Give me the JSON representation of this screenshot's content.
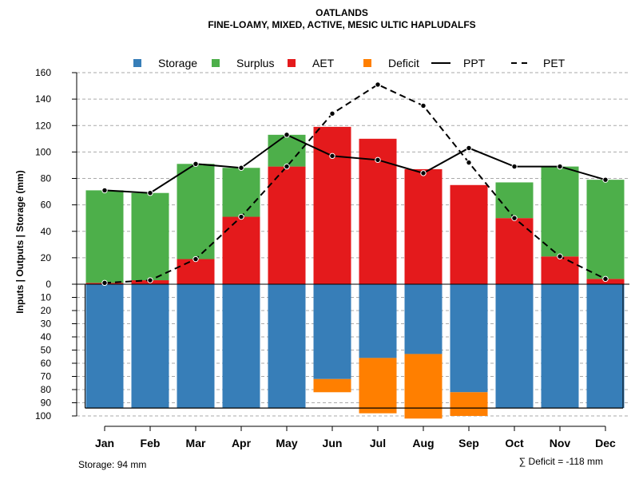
{
  "chart_data": {
    "type": "bar",
    "title": "OATLANDS",
    "subtitle": "FINE-LOAMY, MIXED, ACTIVE, MESIC ULTIC HAPLUDALFS",
    "ylabel": "Inputs | Outputs | Storage    (mm)",
    "categories": [
      "Jan",
      "Feb",
      "Mar",
      "Apr",
      "May",
      "Jun",
      "Jul",
      "Aug",
      "Sep",
      "Oct",
      "Nov",
      "Dec"
    ],
    "upper_ylim": [
      0,
      160
    ],
    "upper_ticks": [
      0,
      20,
      40,
      60,
      80,
      100,
      120,
      140,
      160
    ],
    "lower_ylim": [
      0,
      100
    ],
    "lower_ticks": [
      0,
      10,
      20,
      30,
      40,
      50,
      60,
      70,
      80,
      90,
      100
    ],
    "legend": [
      {
        "key": "storage",
        "label": "Storage",
        "type": "box",
        "color": "#377EB8"
      },
      {
        "key": "surplus",
        "label": "Surplus",
        "type": "box",
        "color": "#4DAF4A"
      },
      {
        "key": "aet",
        "label": "AET",
        "type": "box",
        "color": "#E41A1C"
      },
      {
        "key": "deficit",
        "label": "Deficit",
        "type": "box",
        "color": "#FF7F00"
      },
      {
        "key": "ppt",
        "label": "PPT",
        "type": "line-solid",
        "color": "#000000"
      },
      {
        "key": "pet",
        "label": "PET",
        "type": "line-dashed",
        "color": "#000000"
      }
    ],
    "series": [
      {
        "name": "AET",
        "values": [
          1,
          3,
          19,
          51,
          89,
          119,
          110,
          87,
          75,
          50,
          21,
          4
        ]
      },
      {
        "name": "Surplus",
        "values": [
          70,
          66,
          72,
          37,
          24,
          0,
          0,
          0,
          0,
          27,
          68,
          75
        ]
      },
      {
        "name": "PPT",
        "values": [
          71,
          69,
          91,
          88,
          113,
          97,
          94,
          84,
          103,
          89,
          89,
          79
        ]
      },
      {
        "name": "PET",
        "values": [
          1,
          3,
          19,
          51,
          89,
          129,
          151,
          135,
          92,
          50,
          21,
          4
        ]
      },
      {
        "name": "Storage",
        "values": [
          94,
          94,
          94,
          94,
          94,
          72,
          56,
          53,
          82,
          94,
          94,
          94
        ]
      },
      {
        "name": "Deficit",
        "values": [
          0,
          0,
          0,
          0,
          0,
          10,
          42,
          49,
          18,
          0,
          0,
          0
        ]
      }
    ],
    "storage_capacity": 94,
    "footer_left": "Storage: 94 mm",
    "footer_right": "∑ Deficit = -118 mm"
  }
}
